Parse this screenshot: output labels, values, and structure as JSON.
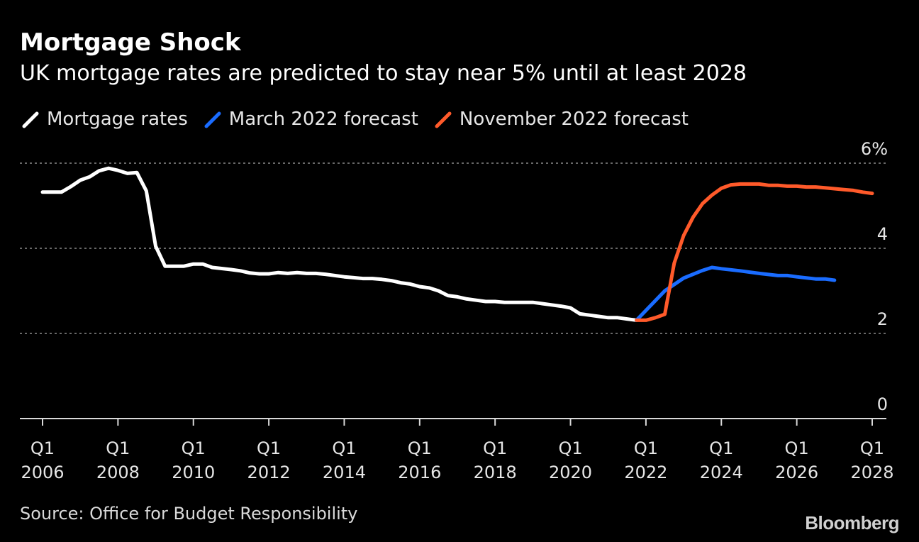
{
  "colors": {
    "background": "#000000",
    "mortgage_rates": "#ffffff",
    "march_forecast": "#1a6cff",
    "november_forecast": "#ff5a2a",
    "grid": "#8a8a8a",
    "text": "#ffffff"
  },
  "source": "Source: Office for Budget Responsibility",
  "brand": "Bloomberg",
  "chart_data": {
    "type": "line",
    "title": "Mortgage Shock",
    "subtitle": "UK mortgage rates are predicted to stay near 5% until at least 2028",
    "xlabel": "",
    "ylabel": "",
    "xlim": [
      2006.0,
      2028.0
    ],
    "ylim": [
      0,
      6
    ],
    "grid": true,
    "legend_position": "top-left",
    "y_ticks": [
      {
        "value": 0,
        "label": "0"
      },
      {
        "value": 2,
        "label": "2"
      },
      {
        "value": 4,
        "label": "4"
      },
      {
        "value": 6,
        "label": "6%"
      }
    ],
    "x_ticks": [
      {
        "value": 2006,
        "line1": "Q1",
        "line2": "2006"
      },
      {
        "value": 2008,
        "line1": "Q1",
        "line2": "2008"
      },
      {
        "value": 2010,
        "line1": "Q1",
        "line2": "2010"
      },
      {
        "value": 2012,
        "line1": "Q1",
        "line2": "2012"
      },
      {
        "value": 2014,
        "line1": "Q1",
        "line2": "2014"
      },
      {
        "value": 2016,
        "line1": "Q1",
        "line2": "2016"
      },
      {
        "value": 2018,
        "line1": "Q1",
        "line2": "2018"
      },
      {
        "value": 2020,
        "line1": "Q1",
        "line2": "2020"
      },
      {
        "value": 2022,
        "line1": "Q1",
        "line2": "2022"
      },
      {
        "value": 2024,
        "line1": "Q1",
        "line2": "2024"
      },
      {
        "value": 2026,
        "line1": "Q1",
        "line2": "2026"
      },
      {
        "value": 2028,
        "line1": "Q1",
        "line2": "2028"
      }
    ],
    "series": [
      {
        "name": "Mortgage rates",
        "color": "#ffffff",
        "x": [
          2006.0,
          2006.5,
          2006.75,
          2007.0,
          2007.25,
          2007.5,
          2007.75,
          2008.0,
          2008.25,
          2008.5,
          2008.75,
          2009.0,
          2009.25,
          2009.5,
          2009.75,
          2010.0,
          2010.25,
          2010.5,
          2011.0,
          2011.25,
          2011.5,
          2011.75,
          2012.0,
          2012.25,
          2012.5,
          2012.75,
          2013.0,
          2013.25,
          2013.5,
          2014.0,
          2014.25,
          2014.5,
          2014.75,
          2015.0,
          2015.25,
          2015.5,
          2015.75,
          2016.0,
          2016.25,
          2016.5,
          2016.75,
          2017.0,
          2017.25,
          2017.5,
          2017.75,
          2018.0,
          2018.25,
          2018.5,
          2019.0,
          2019.25,
          2019.5,
          2019.75,
          2020.0,
          2020.25,
          2020.5,
          2020.75,
          2021.0,
          2021.25,
          2021.5,
          2021.75
        ],
        "values": [
          5.32,
          5.32,
          5.45,
          5.6,
          5.68,
          5.82,
          5.88,
          5.83,
          5.76,
          5.78,
          5.35,
          4.05,
          3.58,
          3.58,
          3.58,
          3.63,
          3.63,
          3.55,
          3.5,
          3.47,
          3.42,
          3.4,
          3.4,
          3.43,
          3.41,
          3.43,
          3.41,
          3.41,
          3.39,
          3.33,
          3.31,
          3.29,
          3.29,
          3.27,
          3.24,
          3.19,
          3.16,
          3.1,
          3.07,
          3.0,
          2.89,
          2.86,
          2.81,
          2.78,
          2.75,
          2.75,
          2.73,
          2.73,
          2.73,
          2.7,
          2.67,
          2.64,
          2.6,
          2.46,
          2.43,
          2.4,
          2.37,
          2.37,
          2.34,
          2.31
        ]
      },
      {
        "name": "March 2022 forecast",
        "color": "#1a6cff",
        "x": [
          2021.75,
          2022.5,
          2023.0,
          2023.5,
          2023.75,
          2024.0,
          2024.5,
          2025.0,
          2025.5,
          2025.75,
          2026.0,
          2026.5,
          2026.75,
          2027.0
        ],
        "values": [
          2.31,
          3.0,
          3.3,
          3.48,
          3.55,
          3.52,
          3.47,
          3.41,
          3.36,
          3.36,
          3.33,
          3.28,
          3.28,
          3.25
        ]
      },
      {
        "name": "November 2022 forecast",
        "color": "#ff5a2a",
        "x": [
          2021.75,
          2022.0,
          2022.25,
          2022.5,
          2022.75,
          2023.0,
          2023.25,
          2023.5,
          2023.75,
          2024.0,
          2024.25,
          2024.5,
          2024.75,
          2025.0,
          2025.25,
          2025.5,
          2025.75,
          2026.0,
          2026.25,
          2026.5,
          2026.75,
          2027.0,
          2027.25,
          2027.5,
          2027.75,
          2028.0
        ],
        "values": [
          2.31,
          2.31,
          2.37,
          2.45,
          3.65,
          4.3,
          4.73,
          5.05,
          5.25,
          5.41,
          5.49,
          5.51,
          5.51,
          5.51,
          5.48,
          5.48,
          5.46,
          5.46,
          5.44,
          5.44,
          5.42,
          5.4,
          5.38,
          5.36,
          5.32,
          5.29
        ]
      }
    ]
  }
}
